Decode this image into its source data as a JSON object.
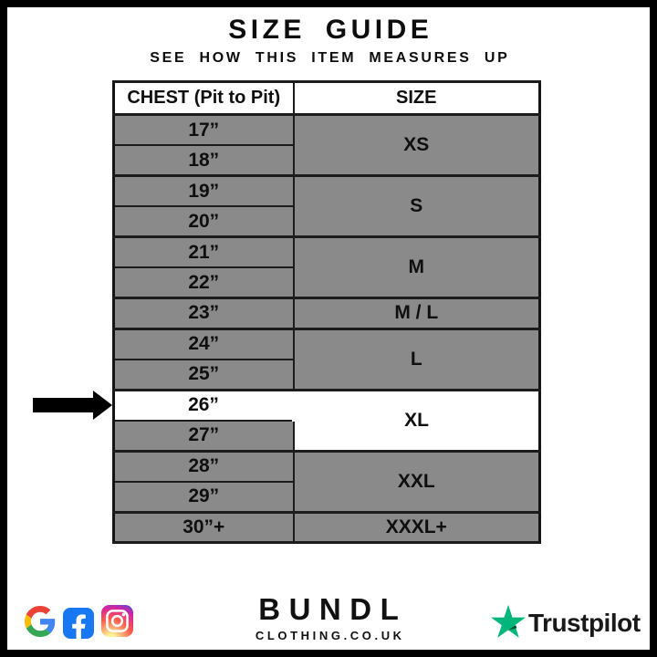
{
  "header": {
    "title": "SIZE GUIDE",
    "subtitle": "SEE HOW THIS ITEM MEASURES UP"
  },
  "table": {
    "columns": [
      {
        "label": "CHEST (Pit to Pit)"
      },
      {
        "label": "SIZE"
      }
    ],
    "groups": [
      {
        "size": "XS",
        "chest": [
          "17”",
          "18”"
        ]
      },
      {
        "size": "S",
        "chest": [
          "19”",
          "20”"
        ]
      },
      {
        "size": "M",
        "chest": [
          "21”",
          "22”"
        ]
      },
      {
        "size": "M / L",
        "chest": [
          "23”"
        ]
      },
      {
        "size": "L",
        "chest": [
          "24”",
          "25”"
        ]
      },
      {
        "size": "XL",
        "chest": [
          "26”",
          "27”"
        ],
        "highlighted": true,
        "highlighted_chest": "26”"
      },
      {
        "size": "XXL",
        "chest": [
          "28”",
          "29”"
        ]
      },
      {
        "size": "XXXL+",
        "chest": [
          "30”+"
        ]
      }
    ],
    "pointer_arrow_target": "26”"
  },
  "footer": {
    "social_icons": [
      "google-icon",
      "facebook-icon",
      "instagram-icon"
    ],
    "brand": {
      "name": "BUNDL",
      "domain": "CLOTHING.CO.UK"
    },
    "trustpilot": {
      "label": "Trustpilot"
    }
  },
  "colors": {
    "row_gray": "#8a8a8a",
    "table_border": "#1c1c1c",
    "highlight_white": "#ffffff",
    "page_border": "#000000",
    "facebook_blue": "#1877F2",
    "google_blue": "#4285F4",
    "google_red": "#EA4335",
    "google_yellow": "#FBBC05",
    "google_green": "#34A853",
    "instagram_gradient": [
      "#fdf497",
      "#fd5949",
      "#d6249f",
      "#285AEB"
    ],
    "trustpilot_green": "#00B67A",
    "trustpilot_dark_green": "#005128"
  }
}
